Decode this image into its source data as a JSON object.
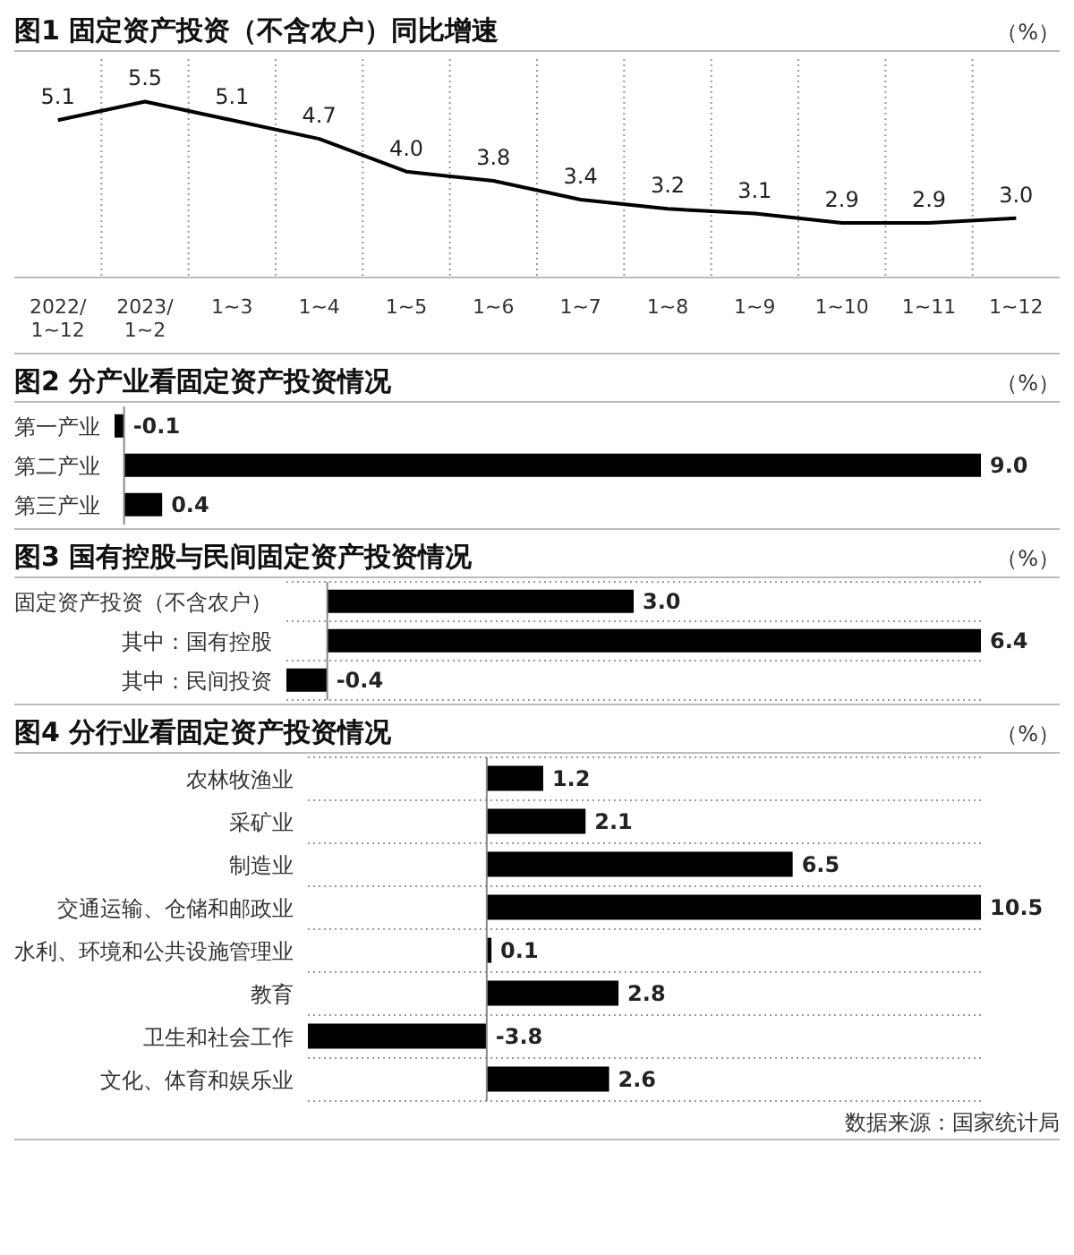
{
  "chart_data": [
    {
      "type": "line",
      "title": "图1 固定资产投资（不含农户）同比增速",
      "ylabel": "（%）",
      "categories": [
        "2022/\n1~12",
        "2023/\n1~2",
        "1~3",
        "1~4",
        "1~5",
        "1~6",
        "1~7",
        "1~8",
        "1~9",
        "1~10",
        "1~11",
        "1~12"
      ],
      "series": [
        {
          "color": "#000000",
          "values": [
            5.1,
            5.5,
            5.1,
            4.7,
            4.0,
            3.8,
            3.4,
            3.2,
            3.1,
            2.9,
            2.9,
            3.0
          ],
          "value_labels": [
            "5.1",
            "5.5",
            "5.1",
            "4.7",
            "4.0",
            "3.8",
            "3.4",
            "3.2",
            "3.1",
            "2.9",
            "2.9",
            "3.0"
          ]
        }
      ],
      "grid": "x",
      "marker": "none",
      "tick_labels": "x"
    },
    {
      "type": "bar",
      "orientation": "horizontal",
      "title": "图2 分产业看固定资产投资情况",
      "xlabel": "（%）",
      "categories": [
        "第一产业",
        "第二产业",
        "第三产业"
      ],
      "values": [
        -0.1,
        9.0,
        0.4
      ],
      "value_labels": [
        "-0.1",
        "9.0",
        "0.4"
      ],
      "color": "#000000",
      "tick_labels": "y"
    },
    {
      "type": "bar",
      "orientation": "horizontal",
      "title": "图3 国有控股与民间固定资产投资情况",
      "xlabel": "（%）",
      "categories": [
        "固定资产投资（不含农户）",
        "其中：国有控股",
        "其中：民间投资"
      ],
      "values": [
        3.0,
        6.4,
        -0.4
      ],
      "value_labels": [
        "3.0",
        "6.4",
        "-0.4"
      ],
      "color": "#000000",
      "tick_labels": "y",
      "grid": "y"
    },
    {
      "type": "bar",
      "orientation": "horizontal",
      "title": "图4 分行业看固定资产投资情况",
      "xlabel": "（%）",
      "categories": [
        "农林牧渔业",
        "采矿业",
        "制造业",
        "交通运输、仓储和邮政业",
        "水利、环境和公共设施管理业",
        "教育",
        "卫生和社会工作",
        "文化、体育和娱乐业"
      ],
      "values": [
        1.2,
        2.1,
        6.5,
        10.5,
        0.1,
        2.8,
        -3.8,
        2.6
      ],
      "value_labels": [
        "1.2",
        "2.1",
        "6.5",
        "10.5",
        "0.1",
        "2.8",
        "-3.8",
        "2.6"
      ],
      "color": "#000000",
      "tick_labels": "y",
      "grid": "y",
      "annotations": [
        "数据来源：国家统计局"
      ]
    }
  ]
}
